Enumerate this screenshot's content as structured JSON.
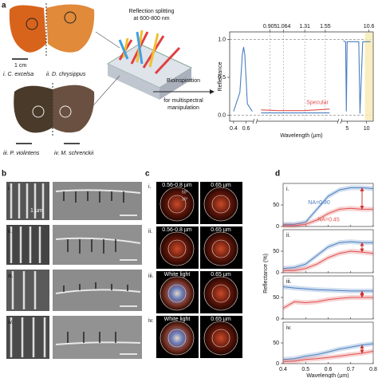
{
  "panels": {
    "a": {
      "label": "a",
      "scale": "1 cm",
      "specimens": [
        "i. C. excelsa",
        "ii. D. chrysippus",
        "iii. P. violintens",
        "iv. M. schrenckii"
      ],
      "splitting": [
        "Reflection splitting",
        "at 600-800 nm"
      ],
      "bioinspiration": [
        "Bioinspiration",
        "for multispectral",
        "manipulation"
      ],
      "chart": {
        "type": "line",
        "y_label": "Reflectance",
        "x_label": "Wavelength (µm)",
        "xlim_segments": [
          [
            0.35,
            0.72
          ],
          [
            0.75,
            1.7
          ],
          [
            3.5,
            11.5
          ]
        ],
        "xticks": [
          0.4,
          0.6,
          5,
          10
        ],
        "ylim": [
          -0.08,
          1.1
        ],
        "yticks": [
          {
            "value": 0,
            "label": "0.0"
          },
          {
            "value": 0.5,
            "label": "0.5"
          },
          {
            "value": 1,
            "label": "1.0"
          }
        ],
        "marked_wavelengths": [
          0.905,
          1.064,
          1.31,
          1.55,
          10.6
        ],
        "series": [
          {
            "color": "#4a7fc0",
            "x": [
              0.4,
              0.5,
              0.54,
              0.56,
              0.58,
              0.62,
              0.7,
              0.8,
              1.2,
              1.6,
              4,
              4.6,
              4.8,
              5.0,
              7,
              8,
              8.3,
              9,
              11
            ],
            "values": [
              0.05,
              0.3,
              0.8,
              0.9,
              0.8,
              0.15,
              0.05,
              0.03,
              0.03,
              0.03,
              0.98,
              0.97,
              0.05,
              0.97,
              0.97,
              0.97,
              0.02,
              0.97,
              0.97
            ]
          },
          {
            "name": "Specular",
            "color": "#e05050",
            "x": [
              0.8,
              1.0,
              1.3,
              1.6
            ],
            "values": [
              0.07,
              0.06,
              0.06,
              0.08
            ]
          }
        ]
      }
    },
    "b": {
      "label": "b",
      "rows": [
        "i.",
        "ii.",
        "iii.",
        "iv."
      ],
      "scale": "1 µm"
    },
    "c": {
      "label": "c",
      "rows": [
        {
          "label": "i.",
          "left": "0.56-0.8 µm",
          "right": "0.65 µm",
          "angles": [
            "60°",
            "30°"
          ]
        },
        {
          "label": "ii.",
          "left": "0.56-0.8 µm",
          "right": "0.65 µm"
        },
        {
          "label": "iii.",
          "left": "White light",
          "right": "0.65 µm"
        },
        {
          "label": "iv.",
          "left": "White light",
          "right": "0.65 µm"
        }
      ]
    },
    "d": {
      "label": "d",
      "chart": {
        "type": "line",
        "y_label": "Reflectance (%)",
        "x_label": "Wavelength (µm)",
        "xlim": [
          0.4,
          0.8
        ],
        "xticks": [
          0.4,
          0.5,
          0.6,
          0.7,
          0.8
        ],
        "x": [
          0.4,
          0.45,
          0.5,
          0.55,
          0.6,
          0.65,
          0.7,
          0.75,
          0.8
        ],
        "subplots": [
          {
            "label": "i.",
            "ylim": [
              0,
              100
            ],
            "yticks": [
              0,
              50
            ],
            "series": [
              {
                "name": "NA=0.90",
                "color": "#4a7fc0",
                "values": [
                  5,
                  5,
                  10,
                  40,
                  70,
                  85,
                  90,
                  90,
                  88
                ]
              },
              {
                "name": "NA=0.45",
                "color": "#e05050",
                "values": [
                  2,
                  2,
                  5,
                  15,
                  30,
                  40,
                  42,
                  40,
                  40
                ]
              }
            ]
          },
          {
            "label": "ii.",
            "ylim": [
              0,
              100
            ],
            "yticks": [
              0,
              50
            ],
            "series": [
              {
                "color": "#4a7fc0",
                "values": [
                  10,
                  12,
                  20,
                  40,
                  60,
                  70,
                  72,
                  70,
                  70
                ]
              },
              {
                "color": "#e05050",
                "values": [
                  5,
                  5,
                  10,
                  20,
                  35,
                  45,
                  50,
                  48,
                  45
                ]
              }
            ]
          },
          {
            "label": "iii.",
            "ylim": [
              0,
              100
            ],
            "yticks": [
              0,
              50
            ],
            "series": [
              {
                "color": "#4a7fc0",
                "values": [
                  75,
                  72,
                  70,
                  68,
                  67,
                  66,
                  65,
                  65,
                  65
                ]
              },
              {
                "color": "#e05050",
                "values": [
                  25,
                  40,
                  38,
                  40,
                  45,
                  48,
                  50,
                  50,
                  50
                ]
              }
            ]
          },
          {
            "label": "iv.",
            "ylim": [
              0,
              100
            ],
            "yticks": [
              0,
              50
            ],
            "series": [
              {
                "color": "#4a7fc0",
                "values": [
                  10,
                  12,
                  18,
                  22,
                  28,
                  35,
                  40,
                  45,
                  48
                ]
              },
              {
                "color": "#e05050",
                "values": [
                  5,
                  6,
                  10,
                  12,
                  15,
                  18,
                  22,
                  25,
                  30
                ]
              }
            ]
          }
        ]
      }
    }
  }
}
